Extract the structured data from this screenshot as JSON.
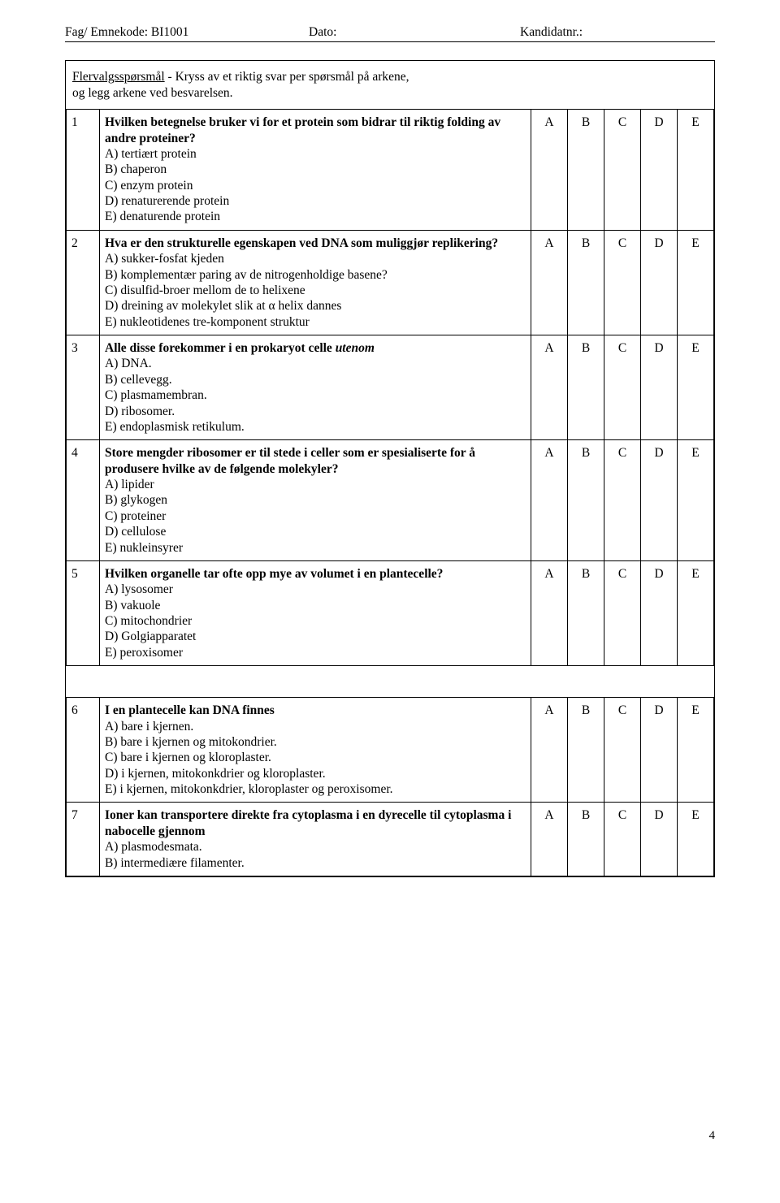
{
  "header": {
    "subject_label": "Fag/ Emnekode: BI1001",
    "date_label": "Dato:",
    "cand_label": "Kandidatnr.:"
  },
  "intro": {
    "title": "Flervalgsspørsmål",
    "rest": "  - Kryss av et riktig svar per spørsmål på arkene,",
    "line2": "og legg arkene ved besvarelsen."
  },
  "opts": [
    "A",
    "B",
    "C",
    "D",
    "E"
  ],
  "groups": [
    {
      "questions": [
        {
          "n": "1",
          "stem_bold": "Hvilken betegnelse bruker vi  for et protein som bidrar til riktig folding av andre proteiner?",
          "choices": [
            "A) tertiært protein",
            "B) chaperon",
            "C) enzym protein",
            "D) renaturerende protein",
            "E) denaturende protein"
          ]
        },
        {
          "n": "2",
          "stem_bold": "Hva er den strukturelle egenskapen ved DNA som muliggjør replikering?",
          "choices": [
            "A) sukker-fosfat kjeden",
            "B) komplementær paring av de nitrogenholdige basene?",
            "C) disulfid-broer mellom de to helixene",
            "D) dreining av molekylet slik at α helix dannes",
            "E) nukleotidenes tre-komponent struktur"
          ]
        },
        {
          "n": "3",
          "stem_bold": "Alle disse forekommer i en prokaryot celle ",
          "stem_ital": "utenom",
          "choices": [
            "A) DNA.",
            "B) cellevegg.",
            "C) plasmamembran.",
            "D) ribosomer.",
            "E) endoplasmisk retikulum."
          ]
        },
        {
          "n": "4",
          "stem_bold": "Store mengder ribosomer er til stede i celler som er spesialiserte for å produsere hvilke av de følgende molekyler?",
          "choices": [
            "A) lipider",
            "B) glykogen",
            "C) proteiner",
            "D) cellulose",
            "E) nukleinsyrer"
          ]
        },
        {
          "n": "5",
          "stem_bold": "Hvilken organelle tar ofte opp mye av volumet i en plantecelle?",
          "choices": [
            "A) lysosomer",
            "B) vakuole",
            "C) mitochondrier",
            "D) Golgiapparatet",
            "E) peroxisomer"
          ]
        }
      ]
    },
    {
      "questions": [
        {
          "n": "6",
          "stem_bold": "I en plantecelle kan DNA finnes",
          "choices": [
            "A) bare i kjernen.",
            "B) bare i kjernen og mitokondrier.",
            "C) bare i kjernen og kloroplaster.",
            "D) i kjernen, mitokonkdrier og kloroplaster.",
            "E) i kjernen, mitokonkdrier, kloroplaster og peroxisomer."
          ]
        },
        {
          "n": "7",
          "stem_bold": "Ioner kan transportere direkte fra cytoplasma i en dyrecelle til cytoplasma i nabocelle gjennom",
          "choices": [
            "A) plasmodesmata.",
            "B) intermediære filamenter."
          ]
        }
      ]
    }
  ],
  "page_number": "4"
}
